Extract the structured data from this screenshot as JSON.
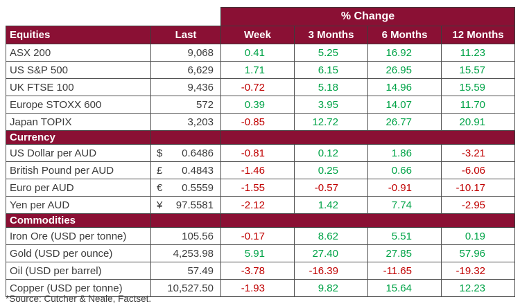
{
  "chart_data": {
    "type": "table",
    "title": "% Change",
    "columns": [
      "Equities",
      "Last",
      "Week",
      "3 Months",
      "6 Months",
      "12 Months"
    ],
    "sections": [
      {
        "name": "Equities",
        "rows": [
          {
            "label": "ASX 200",
            "sym": "",
            "last": "9,068",
            "week": "0.41",
            "m3": "5.25",
            "m6": "16.92",
            "m12": "11.23"
          },
          {
            "label": "US S&P 500",
            "sym": "",
            "last": "6,629",
            "week": "1.71",
            "m3": "6.15",
            "m6": "26.95",
            "m12": "15.57"
          },
          {
            "label": "UK FTSE 100",
            "sym": "",
            "last": "9,436",
            "week": "-0.72",
            "m3": "5.18",
            "m6": "14.96",
            "m12": "15.59"
          },
          {
            "label": "Europe STOXX 600",
            "sym": "",
            "last": "572",
            "week": "0.39",
            "m3": "3.95",
            "m6": "14.07",
            "m12": "11.70"
          },
          {
            "label": "Japan TOPIX",
            "sym": "",
            "last": "3,203",
            "week": "-0.85",
            "m3": "12.72",
            "m6": "26.77",
            "m12": "20.91"
          }
        ]
      },
      {
        "name": "Currency",
        "rows": [
          {
            "label": "US Dollar per AUD",
            "sym": "$",
            "last": "0.6486",
            "week": "-0.81",
            "m3": "0.12",
            "m6": "1.86",
            "m12": "-3.21"
          },
          {
            "label": "British Pound per AUD",
            "sym": "£",
            "last": "0.4843",
            "week": "-1.46",
            "m3": "0.25",
            "m6": "0.66",
            "m12": "-6.06"
          },
          {
            "label": "Euro per AUD",
            "sym": "€",
            "last": "0.5559",
            "week": "-1.55",
            "m3": "-0.57",
            "m6": "-0.91",
            "m12": "-10.17"
          },
          {
            "label": "Yen per AUD",
            "sym": "¥",
            "last": "97.5581",
            "week": "-2.12",
            "m3": "1.42",
            "m6": "7.74",
            "m12": "-2.95"
          }
        ]
      },
      {
        "name": "Commodities",
        "rows": [
          {
            "label": "Iron Ore (USD per tonne)",
            "sym": "",
            "last": "105.56",
            "week": "-0.17",
            "m3": "8.62",
            "m6": "5.51",
            "m12": "0.19"
          },
          {
            "label": "Gold (USD per ounce)",
            "sym": "",
            "last": "4,253.98",
            "week": "5.91",
            "m3": "27.40",
            "m6": "27.85",
            "m12": "57.96"
          },
          {
            "label": "Oil (USD per barrel)",
            "sym": "",
            "last": "57.49",
            "week": "-3.78",
            "m3": "-16.39",
            "m6": "-11.65",
            "m12": "-19.32"
          },
          {
            "label": "Copper (USD per tonne)",
            "sym": "",
            "last": "10,527.50",
            "week": "-1.93",
            "m3": "9.82",
            "m6": "15.64",
            "m12": "12.23"
          }
        ]
      }
    ],
    "layout": {
      "grid": "on",
      "header_position": "top"
    }
  },
  "footer": {
    "source": "*Source: Cutcher & Neale, Factset."
  },
  "colors": {
    "header_maroon": "#8a1034",
    "positive_green": "#00a347",
    "negative_red": "#c00000",
    "grid_gray": "#4f4f4f",
    "text_dark": "#3b3b3b"
  }
}
